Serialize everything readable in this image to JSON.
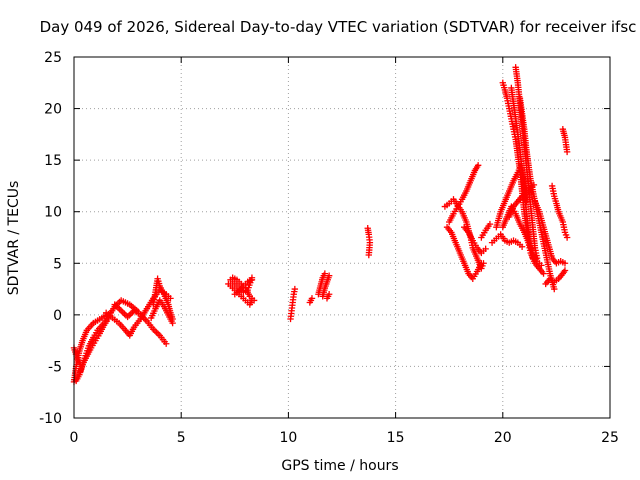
{
  "chart_data": {
    "type": "scatter",
    "title": "Day 049 of 2026, Sidereal Day-to-day VTEC variation (SDTVAR) for receiver ifsc",
    "xlabel": "GPS time / hours",
    "ylabel": "SDTVAR / TECUs",
    "xlim": [
      0,
      25
    ],
    "ylim": [
      -10,
      25
    ],
    "xticks": [
      0,
      5,
      10,
      15,
      20,
      25
    ],
    "yticks": [
      -10,
      -5,
      0,
      5,
      10,
      15,
      20,
      25
    ],
    "grid": true,
    "marker": "+",
    "color": "#ff0000",
    "tracks": [
      [
        [
          0.0,
          -6.5
        ],
        [
          0.1,
          -5.0
        ],
        [
          0.25,
          -3.5
        ],
        [
          0.4,
          -2.5
        ],
        [
          0.6,
          -1.5
        ],
        [
          0.9,
          -0.8
        ],
        [
          1.3,
          -0.3
        ],
        [
          1.7,
          0.2
        ]
      ],
      [
        [
          0.1,
          -6.4
        ],
        [
          0.25,
          -5.8
        ],
        [
          0.4,
          -4.8
        ],
        [
          0.6,
          -4.0
        ],
        [
          0.8,
          -3.2
        ],
        [
          1.0,
          -2.5
        ],
        [
          1.2,
          -1.8
        ],
        [
          1.4,
          -1.0
        ],
        [
          1.6,
          -0.4
        ]
      ],
      [
        [
          0.3,
          -5.5
        ],
        [
          0.5,
          -4.2
        ],
        [
          0.7,
          -3.0
        ],
        [
          0.9,
          -2.2
        ],
        [
          1.1,
          -1.5
        ],
        [
          1.4,
          -0.8
        ],
        [
          1.6,
          -0.2
        ],
        [
          1.9,
          0.8
        ],
        [
          2.2,
          1.4
        ],
        [
          2.6,
          1.0
        ],
        [
          3.0,
          0.3
        ]
      ],
      [
        [
          0.0,
          -3.2
        ],
        [
          0.15,
          -4.2
        ],
        [
          0.3,
          -4.8
        ]
      ],
      [
        [
          1.5,
          0.2
        ],
        [
          1.8,
          -0.3
        ],
        [
          2.1,
          -0.8
        ],
        [
          2.4,
          -1.5
        ],
        [
          2.6,
          -2.0
        ],
        [
          2.8,
          -1.2
        ],
        [
          3.1,
          -0.4
        ],
        [
          3.4,
          0.6
        ],
        [
          3.7,
          1.6
        ],
        [
          4.0,
          2.4
        ],
        [
          4.3,
          2.0
        ],
        [
          4.5,
          1.6
        ]
      ],
      [
        [
          1.9,
          1.0
        ],
        [
          2.2,
          0.4
        ],
        [
          2.5,
          -0.2
        ],
        [
          2.8,
          0.4
        ],
        [
          3.1,
          0.0
        ],
        [
          3.4,
          -0.6
        ],
        [
          3.7,
          -1.4
        ],
        [
          4.0,
          -2.0
        ],
        [
          4.3,
          -2.8
        ]
      ],
      [
        [
          3.7,
          1.0
        ],
        [
          3.8,
          2.2
        ],
        [
          3.9,
          3.5
        ],
        [
          4.0,
          2.8
        ],
        [
          4.2,
          2.0
        ],
        [
          4.4,
          1.0
        ],
        [
          4.5,
          0.2
        ],
        [
          4.6,
          -0.4
        ]
      ],
      [
        [
          3.6,
          -0.3
        ],
        [
          3.8,
          0.6
        ],
        [
          4.0,
          1.4
        ],
        [
          4.2,
          0.8
        ],
        [
          4.4,
          0.0
        ],
        [
          4.6,
          -0.8
        ]
      ],
      [
        [
          7.2,
          3.0
        ],
        [
          7.4,
          2.6
        ],
        [
          7.6,
          2.2
        ],
        [
          7.8,
          1.8
        ],
        [
          8.0,
          1.4
        ],
        [
          8.2,
          1.0
        ],
        [
          8.3,
          1.4
        ]
      ],
      [
        [
          7.3,
          3.4
        ],
        [
          7.5,
          3.0
        ],
        [
          7.7,
          2.6
        ],
        [
          7.9,
          2.2
        ],
        [
          8.1,
          2.4
        ],
        [
          8.3,
          3.6
        ]
      ],
      [
        [
          7.4,
          3.6
        ],
        [
          7.6,
          3.4
        ],
        [
          7.8,
          3.0
        ],
        [
          8.0,
          2.6
        ],
        [
          8.2,
          1.8
        ],
        [
          8.4,
          1.4
        ]
      ],
      [
        [
          7.5,
          2.0
        ],
        [
          7.7,
          2.3
        ],
        [
          7.9,
          2.8
        ],
        [
          8.1,
          3.2
        ],
        [
          8.3,
          3.4
        ]
      ],
      [
        [
          10.1,
          -0.4
        ],
        [
          10.15,
          0.4
        ],
        [
          10.2,
          1.2
        ],
        [
          10.25,
          2.0
        ],
        [
          10.3,
          2.5
        ]
      ],
      [
        [
          11.0,
          1.2
        ],
        [
          11.1,
          1.6
        ]
      ],
      [
        [
          11.4,
          2.0
        ],
        [
          11.5,
          2.8
        ],
        [
          11.6,
          3.6
        ],
        [
          11.7,
          4.0
        ]
      ],
      [
        [
          11.6,
          1.8
        ],
        [
          11.7,
          2.6
        ],
        [
          11.8,
          3.2
        ],
        [
          11.9,
          3.8
        ]
      ],
      [
        [
          11.8,
          1.6
        ],
        [
          11.9,
          2.0
        ]
      ],
      [
        [
          13.7,
          8.4
        ],
        [
          13.75,
          7.8
        ],
        [
          13.8,
          7.0
        ],
        [
          13.75,
          5.8
        ]
      ],
      [
        [
          17.3,
          10.5
        ],
        [
          17.5,
          10.8
        ],
        [
          17.7,
          11.2
        ],
        [
          17.9,
          10.6
        ],
        [
          18.1,
          10.0
        ],
        [
          18.3,
          9.0
        ],
        [
          18.5,
          7.5
        ],
        [
          18.6,
          6.5
        ],
        [
          18.8,
          5.5
        ],
        [
          19.0,
          4.5
        ],
        [
          19.1,
          5.0
        ]
      ],
      [
        [
          17.4,
          8.5
        ],
        [
          17.6,
          8.0
        ],
        [
          17.8,
          7.0
        ],
        [
          18.0,
          6.0
        ],
        [
          18.2,
          5.0
        ],
        [
          18.4,
          4.0
        ],
        [
          18.6,
          3.5
        ],
        [
          18.8,
          4.2
        ],
        [
          19.0,
          5.0
        ]
      ],
      [
        [
          17.5,
          9.0
        ],
        [
          17.7,
          9.8
        ],
        [
          17.9,
          10.5
        ],
        [
          18.1,
          11.2
        ],
        [
          18.3,
          12.0
        ],
        [
          18.5,
          13.0
        ],
        [
          18.7,
          14.0
        ],
        [
          18.85,
          14.5
        ]
      ],
      [
        [
          18.2,
          8.5
        ],
        [
          18.4,
          8.0
        ],
        [
          18.6,
          7.2
        ],
        [
          18.8,
          6.5
        ],
        [
          19.0,
          6.0
        ],
        [
          19.2,
          6.4
        ]
      ],
      [
        [
          19.0,
          7.5
        ],
        [
          19.2,
          8.2
        ],
        [
          19.4,
          8.8
        ]
      ],
      [
        [
          19.5,
          7.0
        ],
        [
          19.7,
          7.4
        ],
        [
          19.9,
          7.8
        ],
        [
          20.1,
          7.2
        ],
        [
          20.3,
          7.0
        ],
        [
          20.5,
          7.2
        ],
        [
          20.7,
          7.0
        ],
        [
          20.9,
          6.6
        ]
      ],
      [
        [
          19.7,
          8.5
        ],
        [
          19.9,
          10.0
        ],
        [
          20.1,
          11.0
        ],
        [
          20.3,
          12.0
        ],
        [
          20.5,
          13.0
        ],
        [
          20.7,
          13.8
        ],
        [
          20.85,
          14.5
        ],
        [
          21.0,
          13.0
        ],
        [
          21.1,
          11.0
        ]
      ],
      [
        [
          20.0,
          22.5
        ],
        [
          20.1,
          21.8
        ],
        [
          20.2,
          21.0
        ],
        [
          20.3,
          20.0
        ],
        [
          20.4,
          19.0
        ],
        [
          20.5,
          18.0
        ],
        [
          20.6,
          17.0
        ],
        [
          20.7,
          15.5
        ],
        [
          20.8,
          14.0
        ],
        [
          20.9,
          12.0
        ],
        [
          21.0,
          10.0
        ],
        [
          21.1,
          8.5
        ],
        [
          21.2,
          7.0
        ],
        [
          21.3,
          6.0
        ],
        [
          21.5,
          5.0
        ],
        [
          21.7,
          4.5
        ],
        [
          21.9,
          4.0
        ]
      ],
      [
        [
          20.4,
          22.0
        ],
        [
          20.5,
          20.5
        ],
        [
          20.6,
          19.0
        ],
        [
          20.7,
          17.5
        ],
        [
          20.8,
          16.0
        ],
        [
          20.9,
          14.0
        ],
        [
          21.0,
          12.0
        ],
        [
          21.1,
          10.0
        ],
        [
          21.2,
          8.0
        ],
        [
          21.3,
          6.5
        ],
        [
          21.4,
          5.5
        ]
      ],
      [
        [
          20.6,
          24.0
        ],
        [
          20.7,
          22.5
        ],
        [
          20.8,
          20.5
        ],
        [
          20.9,
          18.5
        ],
        [
          21.0,
          16.5
        ],
        [
          21.1,
          14.5
        ],
        [
          21.2,
          12.5
        ],
        [
          21.3,
          10.5
        ],
        [
          21.4,
          8.5
        ],
        [
          21.5,
          6.5
        ],
        [
          21.6,
          5.5
        ]
      ],
      [
        [
          20.8,
          21.0
        ],
        [
          20.9,
          19.5
        ],
        [
          21.0,
          18.0
        ],
        [
          21.1,
          16.0
        ],
        [
          21.2,
          14.5
        ],
        [
          21.3,
          13.0
        ],
        [
          21.45,
          11.5
        ],
        [
          21.6,
          10.0
        ],
        [
          21.8,
          8.0
        ],
        [
          22.0,
          6.0
        ],
        [
          22.2,
          4.0
        ],
        [
          22.4,
          2.5
        ]
      ],
      [
        [
          20.3,
          9.5
        ],
        [
          20.5,
          10.5
        ],
        [
          20.7,
          11.0
        ],
        [
          20.9,
          11.5
        ],
        [
          21.1,
          11.8
        ],
        [
          21.3,
          12.2
        ],
        [
          21.45,
          12.6
        ]
      ],
      [
        [
          20.0,
          8.5
        ],
        [
          20.2,
          9.5
        ],
        [
          20.4,
          10.5
        ],
        [
          20.6,
          9.8
        ],
        [
          20.8,
          8.8
        ],
        [
          21.0,
          8.0
        ],
        [
          21.2,
          7.0
        ],
        [
          21.4,
          6.0
        ],
        [
          21.6,
          5.2
        ],
        [
          21.8,
          4.8
        ]
      ],
      [
        [
          21.5,
          11.0
        ],
        [
          21.7,
          10.0
        ],
        [
          21.9,
          8.5
        ],
        [
          22.1,
          7.0
        ],
        [
          22.3,
          5.5
        ],
        [
          22.5,
          5.0
        ],
        [
          22.7,
          5.2
        ],
        [
          22.9,
          5.0
        ]
      ],
      [
        [
          22.3,
          12.5
        ],
        [
          22.4,
          11.5
        ],
        [
          22.5,
          10.8
        ],
        [
          22.6,
          10.0
        ],
        [
          22.8,
          9.0
        ],
        [
          22.9,
          8.0
        ],
        [
          23.0,
          7.5
        ]
      ],
      [
        [
          22.0,
          3.0
        ],
        [
          22.2,
          3.5
        ],
        [
          22.4,
          3.2
        ],
        [
          22.6,
          3.5
        ],
        [
          22.8,
          4.0
        ],
        [
          22.9,
          4.3
        ]
      ],
      [
        [
          22.8,
          18.0
        ],
        [
          22.9,
          17.2
        ],
        [
          22.95,
          16.5
        ],
        [
          23.0,
          15.8
        ]
      ]
    ]
  }
}
